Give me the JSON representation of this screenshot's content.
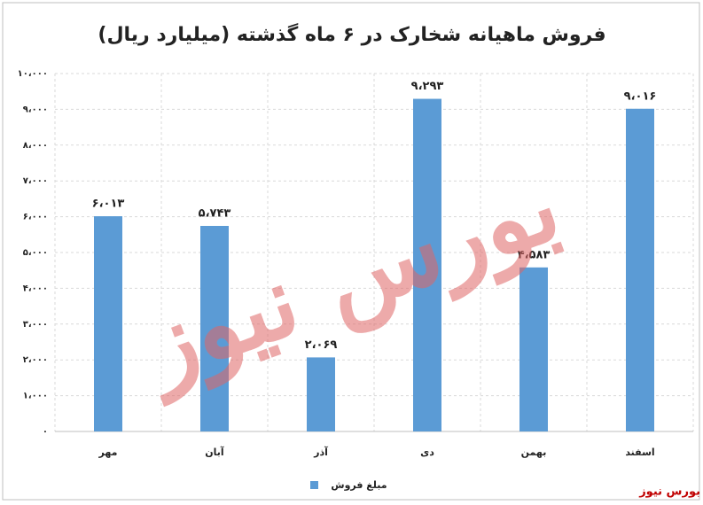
{
  "chart_data": {
    "type": "bar",
    "title": "فروش ماهیانه شخارک در ۶ ماه گذشته (میلیارد ریال)",
    "categories": [
      "مهر",
      "آبان",
      "آذر",
      "دی",
      "بهمن",
      "اسفند"
    ],
    "series": [
      {
        "name": "مبلغ فروش",
        "color": "#5b9bd5",
        "values": [
          6013,
          5743,
          2069,
          9293,
          4583,
          9016
        ],
        "value_labels": [
          "۶،۰۱۳",
          "۵،۷۴۳",
          "۲،۰۶۹",
          "۹،۲۹۳",
          "۴،۵۸۳",
          "۹،۰۱۶"
        ]
      }
    ],
    "ylim": [
      0,
      10000
    ],
    "yticks": [
      {
        "value": 0,
        "label": "۰"
      },
      {
        "value": 1000,
        "label": "۱،۰۰۰"
      },
      {
        "value": 2000,
        "label": "۲،۰۰۰"
      },
      {
        "value": 3000,
        "label": "۳،۰۰۰"
      },
      {
        "value": 4000,
        "label": "۴،۰۰۰"
      },
      {
        "value": 5000,
        "label": "۵،۰۰۰"
      },
      {
        "value": 6000,
        "label": "۶،۰۰۰"
      },
      {
        "value": 7000,
        "label": "۷،۰۰۰"
      },
      {
        "value": 8000,
        "label": "۸،۰۰۰"
      },
      {
        "value": 9000,
        "label": "۹،۰۰۰"
      },
      {
        "value": 10000,
        "label": "۱۰،۰۰۰"
      }
    ],
    "grid": true,
    "legend": "bottom",
    "watermark": "بورس نیوز",
    "source": "بورس نیوز"
  }
}
